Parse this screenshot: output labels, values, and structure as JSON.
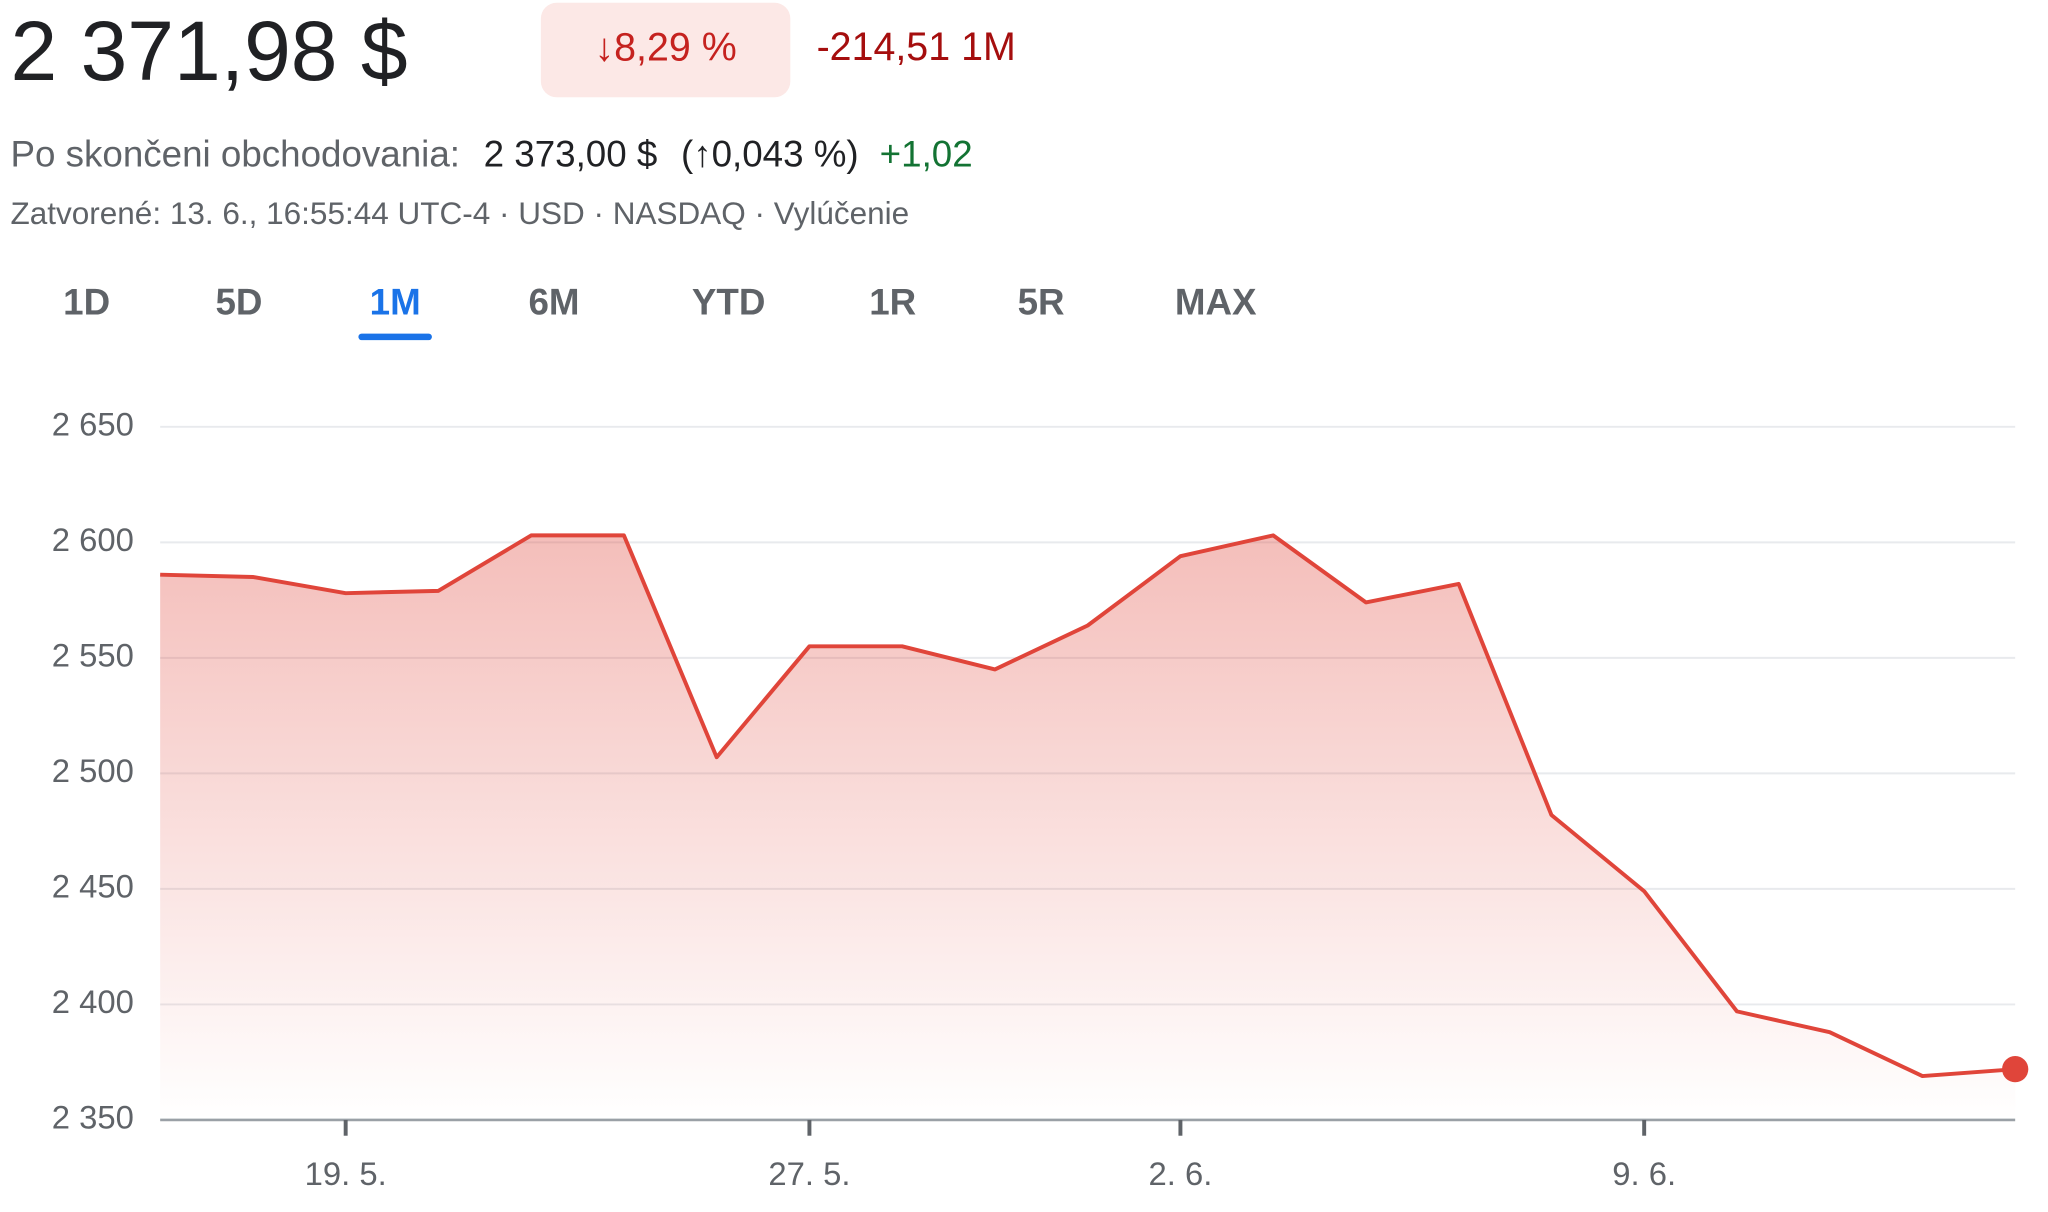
{
  "quote": {
    "price": "2 371,98 $",
    "change_pct": "↓8,29 %",
    "change": "-214,51",
    "period": "1M",
    "after_hours_label": "Po skončeni obchodovania:",
    "after_hours_price": "2 373,00 $",
    "after_hours_pct": "(↑0,043 %)",
    "after_hours_change": "+1,02",
    "status": "Zatvorené: 13. 6., 16:55:44 UTC-4 · USD · NASDAQ · Vylúčenie"
  },
  "ranges": [
    "1D",
    "5D",
    "1M",
    "6M",
    "YTD",
    "1R",
    "5R",
    "MAX"
  ],
  "selected_range": 2,
  "chart_data": {
    "type": "area",
    "color": "#e0453a",
    "categories": [
      null,
      null,
      "19. 5.",
      null,
      null,
      null,
      null,
      "27. 5.",
      null,
      null,
      null,
      "2. 6.",
      null,
      null,
      null,
      null,
      "9. 6.",
      null,
      null,
      null,
      null
    ],
    "values": [
      2586,
      2585,
      2578,
      2579,
      2603,
      2603,
      2507,
      2555,
      2555,
      2545,
      2564,
      2594,
      2603,
      2574,
      2582,
      2482,
      2449,
      2397,
      2388,
      2369,
      2371.98
    ],
    "ylim": [
      2350,
      2650
    ],
    "yticks": [
      {
        "value": 2350,
        "label": "2 350"
      },
      {
        "value": 2400,
        "label": "2 400"
      },
      {
        "value": 2450,
        "label": "2 450"
      },
      {
        "value": 2500,
        "label": "2 500"
      },
      {
        "value": 2550,
        "label": "2 550"
      },
      {
        "value": 2600,
        "label": "2 600"
      },
      {
        "value": 2650,
        "label": "2 650"
      }
    ],
    "grid": true
  }
}
